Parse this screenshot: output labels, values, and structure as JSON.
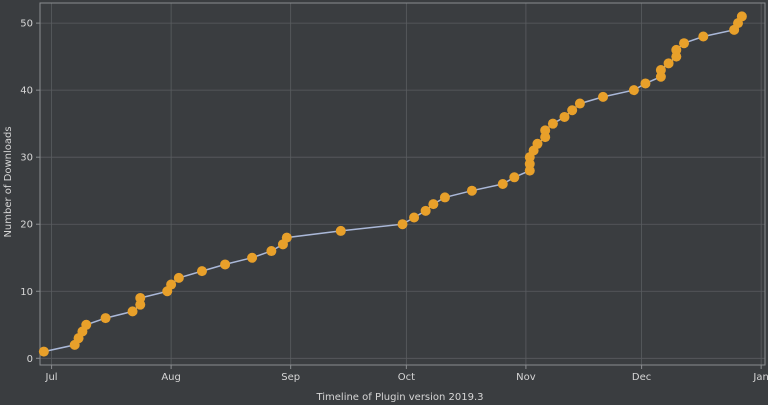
{
  "chart_data": {
    "type": "line",
    "title": "",
    "xlabel": "Timeline of Plugin version 2019.3",
    "ylabel": "Number of Downloads",
    "x_type": "date",
    "xlim": [
      "2019-06-28",
      "2020-01-02"
    ],
    "ylim": [
      -1,
      53
    ],
    "xticks": [
      {
        "date": "2019-07-01",
        "label": "Jul"
      },
      {
        "date": "2019-08-01",
        "label": "Aug"
      },
      {
        "date": "2019-09-01",
        "label": "Sep"
      },
      {
        "date": "2019-10-01",
        "label": "Oct"
      },
      {
        "date": "2019-11-01",
        "label": "Nov"
      },
      {
        "date": "2019-12-01",
        "label": "Dec"
      },
      {
        "date": "2020-01-01",
        "label": "Jan"
      }
    ],
    "yticks": [
      0,
      10,
      20,
      30,
      40,
      50
    ],
    "grid": true,
    "legend": "none",
    "colors": {
      "background": "#3a3d40",
      "grid": "#5a5d60",
      "frame": "#8a8d90",
      "line": "#aab8d8",
      "marker": "#e8a02a"
    },
    "series": [
      {
        "x": [
          "2019-06-29",
          "2019-07-07",
          "2019-07-08",
          "2019-07-09",
          "2019-07-10",
          "2019-07-15",
          "2019-07-22",
          "2019-07-24",
          "2019-07-24",
          "2019-07-31",
          "2019-08-01",
          "2019-08-03",
          "2019-08-09",
          "2019-08-15",
          "2019-08-22",
          "2019-08-27",
          "2019-08-30",
          "2019-08-31",
          "2019-09-14",
          "2019-09-30",
          "2019-10-03",
          "2019-10-06",
          "2019-10-08",
          "2019-10-11",
          "2019-10-18",
          "2019-10-26",
          "2019-10-29",
          "2019-11-02",
          "2019-11-02",
          "2019-11-02",
          "2019-11-03",
          "2019-11-04",
          "2019-11-06",
          "2019-11-06",
          "2019-11-08",
          "2019-11-11",
          "2019-11-13",
          "2019-11-15",
          "2019-11-21",
          "2019-11-29",
          "2019-12-02",
          "2019-12-06",
          "2019-12-06",
          "2019-12-08",
          "2019-12-10",
          "2019-12-10",
          "2019-12-12",
          "2019-12-17",
          "2019-12-25",
          "2019-12-26",
          "2019-12-27"
        ],
        "y": [
          1,
          2,
          3,
          4,
          5,
          6,
          7,
          8,
          9,
          10,
          11,
          12,
          13,
          14,
          15,
          16,
          17,
          18,
          19,
          20,
          21,
          22,
          23,
          24,
          25,
          26,
          27,
          28,
          29,
          30,
          31,
          32,
          33,
          34,
          35,
          36,
          37,
          38,
          39,
          40,
          41,
          42,
          43,
          44,
          45,
          46,
          47,
          48,
          49,
          50,
          51
        ]
      }
    ]
  }
}
